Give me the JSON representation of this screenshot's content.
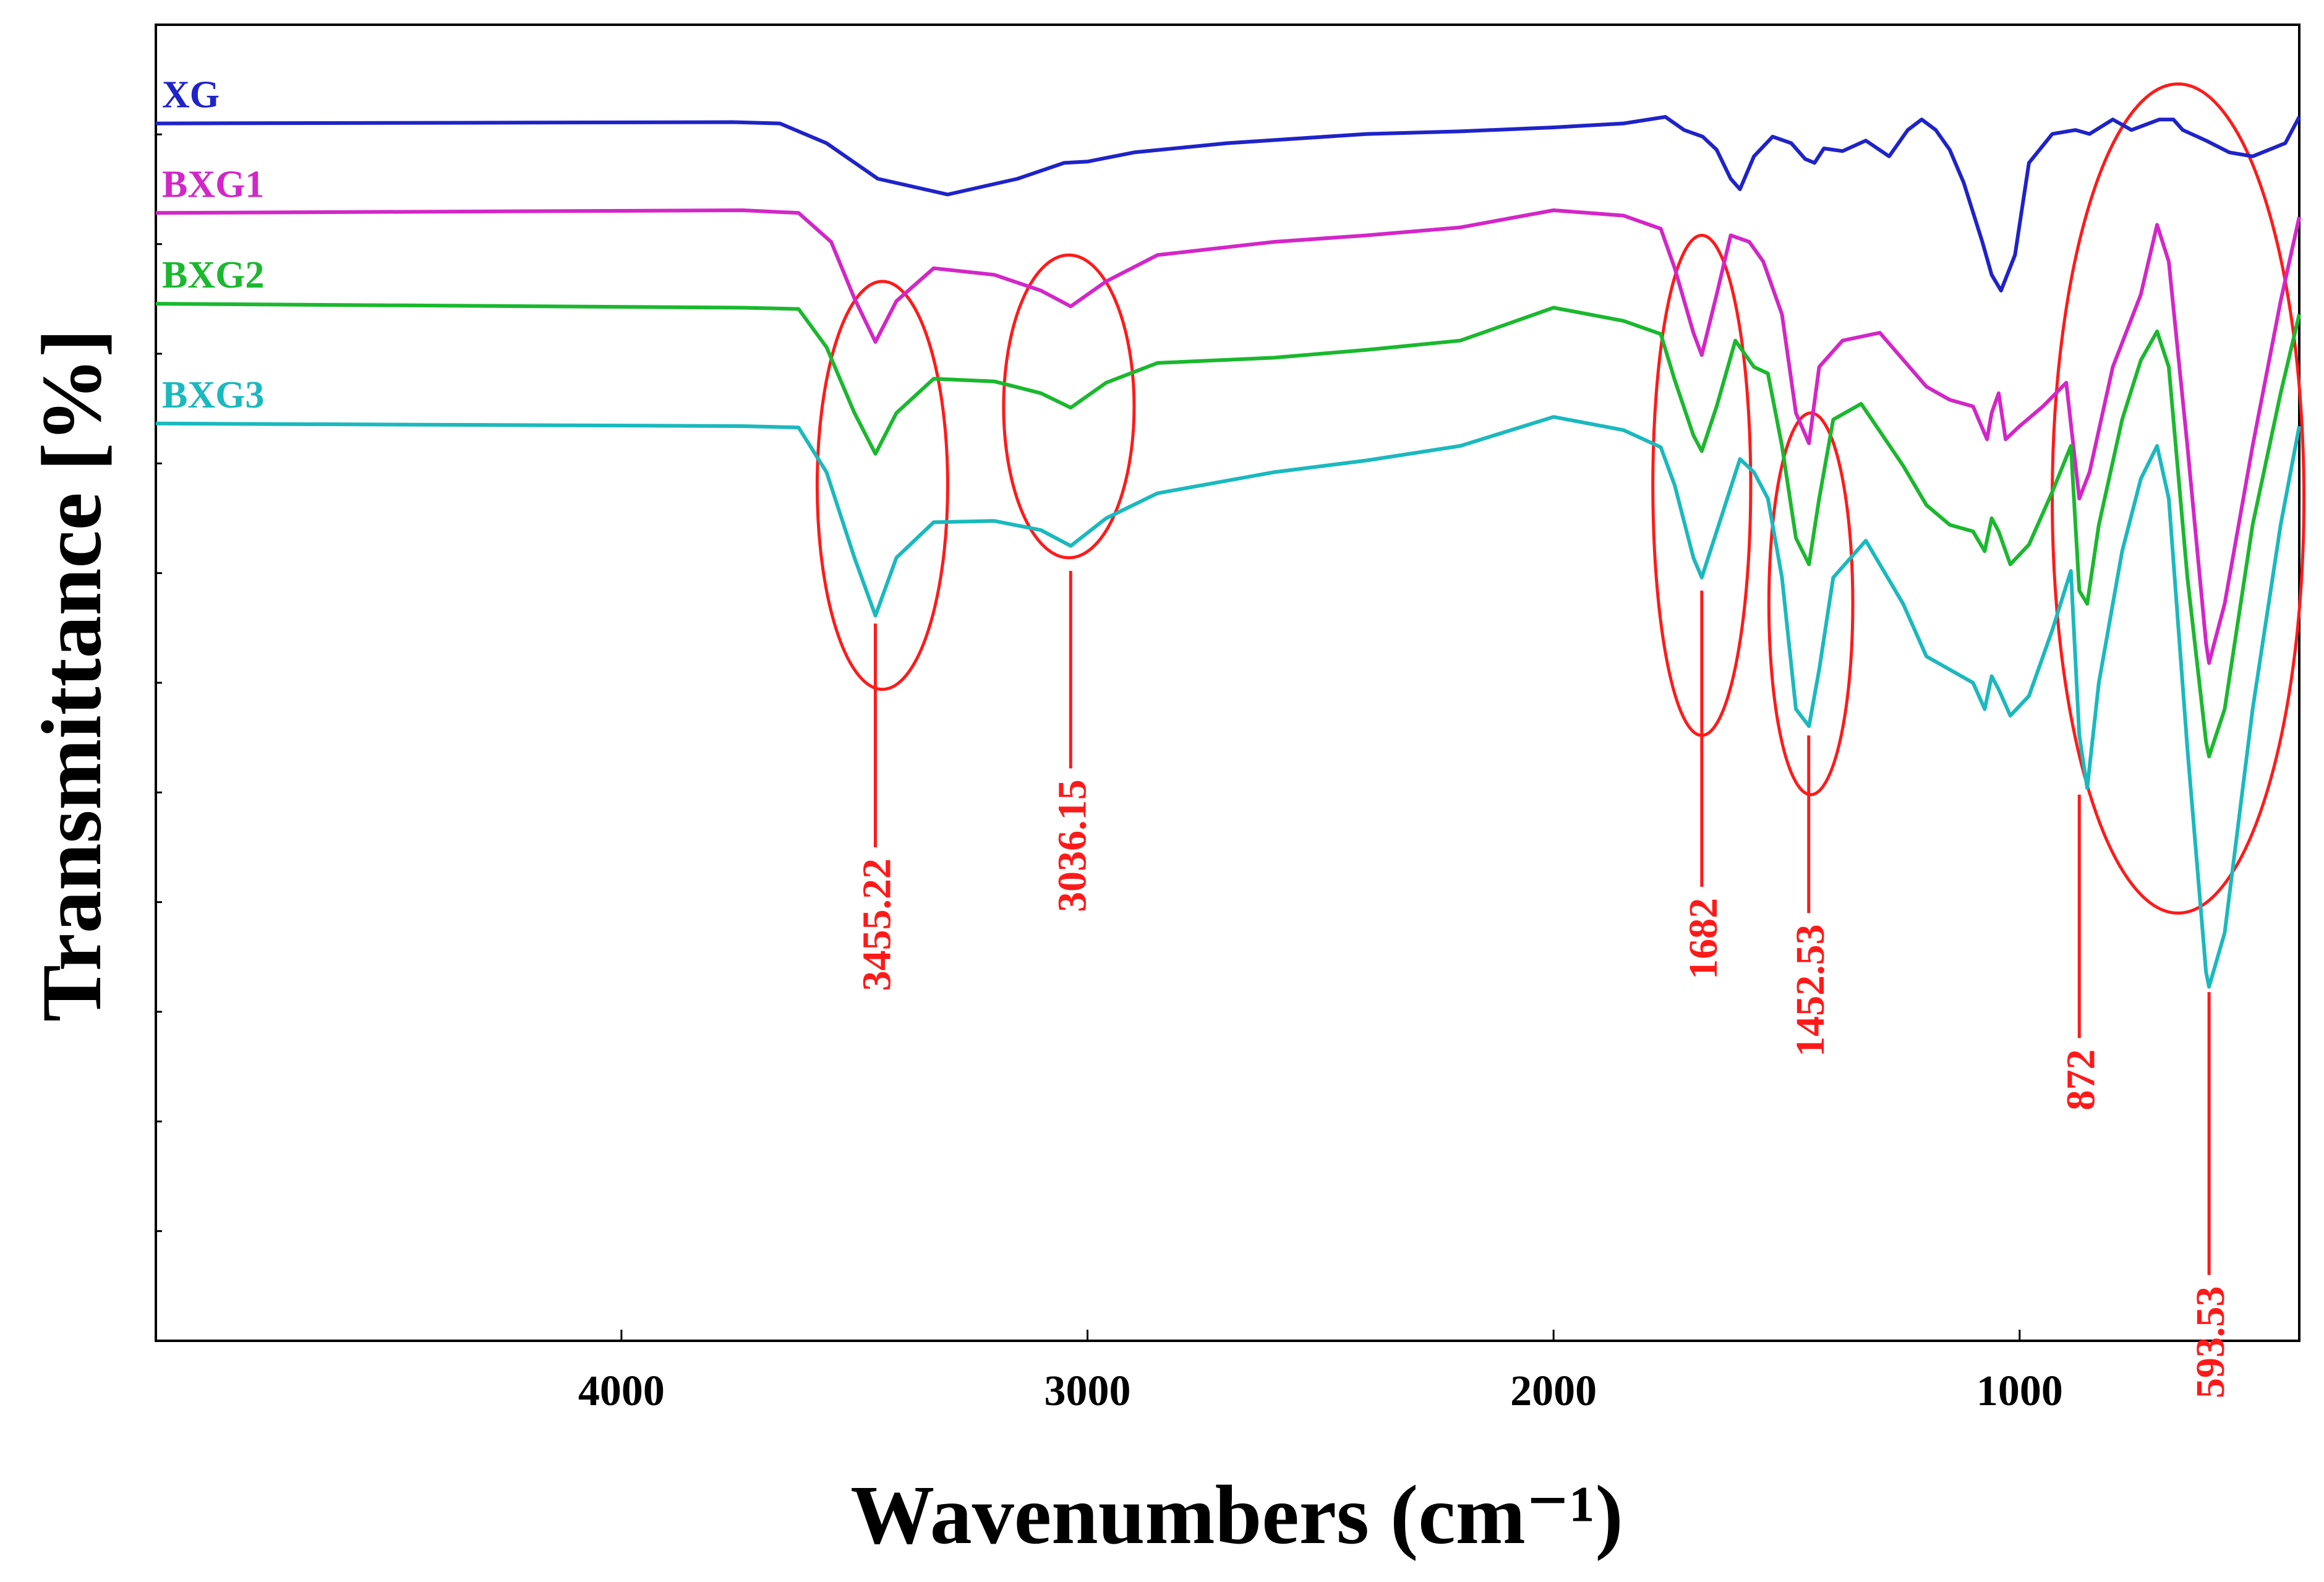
{
  "chart_data": {
    "type": "line",
    "xlabel": "Wavenumbers (cm⁻¹)",
    "ylabel": "Transmittance [%]",
    "xlim": [
      4999,
      400
    ],
    "x_reversed": true,
    "ylim": [
      0,
      100
    ],
    "y_tick_labels_shown": false,
    "grid": false,
    "x_ticks": [
      {
        "value": 4000,
        "label": "4000"
      },
      {
        "value": 3000,
        "label": "3000"
      },
      {
        "value": 2000,
        "label": "2000"
      },
      {
        "value": 1000,
        "label": "1000"
      }
    ],
    "series": [
      {
        "name": "XG",
        "color": "#1f23c8",
        "points": [
          [
            4999,
            92.5
          ],
          [
            3760,
            92.6
          ],
          [
            3660,
            92.5
          ],
          [
            3560,
            91.0
          ],
          [
            3450,
            88.3
          ],
          [
            3300,
            87.1
          ],
          [
            3150,
            88.3
          ],
          [
            3050,
            89.5
          ],
          [
            3000,
            89.6
          ],
          [
            2900,
            90.3
          ],
          [
            2700,
            91.0
          ],
          [
            2400,
            91.7
          ],
          [
            2200,
            91.9
          ],
          [
            2000,
            92.2
          ],
          [
            1850,
            92.5
          ],
          [
            1760,
            93.0
          ],
          [
            1720,
            92.0
          ],
          [
            1680,
            91.5
          ],
          [
            1650,
            90.5
          ],
          [
            1620,
            88.3
          ],
          [
            1600,
            87.5
          ],
          [
            1570,
            90.0
          ],
          [
            1530,
            91.5
          ],
          [
            1490,
            91.0
          ],
          [
            1460,
            89.8
          ],
          [
            1440,
            89.5
          ],
          [
            1420,
            90.6
          ],
          [
            1380,
            90.4
          ],
          [
            1330,
            91.2
          ],
          [
            1280,
            90.0
          ],
          [
            1240,
            92.0
          ],
          [
            1210,
            92.8
          ],
          [
            1180,
            92.0
          ],
          [
            1150,
            90.5
          ],
          [
            1120,
            88.0
          ],
          [
            1080,
            83.5
          ],
          [
            1060,
            81.0
          ],
          [
            1040,
            79.8
          ],
          [
            1010,
            82.5
          ],
          [
            980,
            89.5
          ],
          [
            930,
            91.7
          ],
          [
            880,
            92.0
          ],
          [
            850,
            91.7
          ],
          [
            800,
            92.8
          ],
          [
            760,
            92.0
          ],
          [
            700,
            92.8
          ],
          [
            670,
            92.8
          ],
          [
            650,
            92.0
          ],
          [
            600,
            91.2
          ],
          [
            550,
            90.3
          ],
          [
            500,
            90.0
          ],
          [
            430,
            91.0
          ],
          [
            400,
            93.0
          ]
        ]
      },
      {
        "name": "BXG1",
        "color": "#d326c8",
        "points": [
          [
            4999,
            85.7
          ],
          [
            3740,
            85.9
          ],
          [
            3620,
            85.7
          ],
          [
            3550,
            83.5
          ],
          [
            3500,
            79.2
          ],
          [
            3455,
            75.9
          ],
          [
            3410,
            79.0
          ],
          [
            3330,
            81.5
          ],
          [
            3200,
            81.0
          ],
          [
            3100,
            79.8
          ],
          [
            3036,
            78.6
          ],
          [
            2960,
            80.5
          ],
          [
            2850,
            82.5
          ],
          [
            2600,
            83.5
          ],
          [
            2400,
            84.0
          ],
          [
            2200,
            84.6
          ],
          [
            2000,
            85.9
          ],
          [
            1850,
            85.5
          ],
          [
            1770,
            84.5
          ],
          [
            1740,
            81.5
          ],
          [
            1700,
            76.6
          ],
          [
            1682,
            74.9
          ],
          [
            1650,
            79.5
          ],
          [
            1620,
            84.0
          ],
          [
            1580,
            83.5
          ],
          [
            1550,
            82.0
          ],
          [
            1510,
            78.0
          ],
          [
            1480,
            70.5
          ],
          [
            1452,
            68.2
          ],
          [
            1430,
            74.0
          ],
          [
            1380,
            76.0
          ],
          [
            1300,
            76.6
          ],
          [
            1200,
            72.5
          ],
          [
            1150,
            71.5
          ],
          [
            1100,
            71.0
          ],
          [
            1070,
            68.5
          ],
          [
            1060,
            70.5
          ],
          [
            1045,
            72.0
          ],
          [
            1030,
            68.5
          ],
          [
            1000,
            69.5
          ],
          [
            950,
            71.0
          ],
          [
            900,
            72.8
          ],
          [
            872,
            64.0
          ],
          [
            850,
            66.0
          ],
          [
            800,
            74.0
          ],
          [
            740,
            79.5
          ],
          [
            705,
            84.8
          ],
          [
            680,
            82.0
          ],
          [
            640,
            68.0
          ],
          [
            600,
            53.0
          ],
          [
            593.53,
            51.5
          ],
          [
            560,
            56.0
          ],
          [
            500,
            68.0
          ],
          [
            440,
            79.0
          ],
          [
            400,
            85.4
          ]
        ]
      },
      {
        "name": "BXG2",
        "color": "#1ab82e",
        "points": [
          [
            4999,
            78.8
          ],
          [
            3740,
            78.5
          ],
          [
            3620,
            78.4
          ],
          [
            3560,
            75.5
          ],
          [
            3500,
            70.5
          ],
          [
            3455,
            67.4
          ],
          [
            3410,
            70.5
          ],
          [
            3330,
            73.1
          ],
          [
            3200,
            72.9
          ],
          [
            3100,
            72.0
          ],
          [
            3036,
            70.9
          ],
          [
            2960,
            72.8
          ],
          [
            2850,
            74.3
          ],
          [
            2600,
            74.7
          ],
          [
            2400,
            75.3
          ],
          [
            2200,
            76.0
          ],
          [
            2000,
            78.5
          ],
          [
            1850,
            77.5
          ],
          [
            1770,
            76.5
          ],
          [
            1740,
            73.0
          ],
          [
            1700,
            68.8
          ],
          [
            1682,
            67.6
          ],
          [
            1650,
            71.0
          ],
          [
            1610,
            76.0
          ],
          [
            1570,
            74.0
          ],
          [
            1540,
            73.5
          ],
          [
            1510,
            68.0
          ],
          [
            1480,
            61.0
          ],
          [
            1452,
            59.0
          ],
          [
            1430,
            64.0
          ],
          [
            1400,
            70.0
          ],
          [
            1340,
            71.2
          ],
          [
            1250,
            66.5
          ],
          [
            1200,
            63.5
          ],
          [
            1150,
            62.0
          ],
          [
            1100,
            61.5
          ],
          [
            1075,
            60.0
          ],
          [
            1060,
            62.5
          ],
          [
            1045,
            61.5
          ],
          [
            1020,
            59.0
          ],
          [
            980,
            60.5
          ],
          [
            930,
            64.5
          ],
          [
            890,
            68.0
          ],
          [
            872,
            57.0
          ],
          [
            855,
            56.0
          ],
          [
            830,
            62.0
          ],
          [
            780,
            70.0
          ],
          [
            740,
            74.5
          ],
          [
            705,
            76.7
          ],
          [
            680,
            74.0
          ],
          [
            640,
            58.0
          ],
          [
            600,
            45.5
          ],
          [
            593.53,
            44.4
          ],
          [
            560,
            48.0
          ],
          [
            500,
            62.0
          ],
          [
            440,
            72.0
          ],
          [
            400,
            78.0
          ]
        ]
      },
      {
        "name": "BXG3",
        "color": "#1ab9be",
        "points": [
          [
            4999,
            69.7
          ],
          [
            3740,
            69.5
          ],
          [
            3620,
            69.4
          ],
          [
            3560,
            66.0
          ],
          [
            3500,
            59.5
          ],
          [
            3455,
            55.1
          ],
          [
            3410,
            59.5
          ],
          [
            3330,
            62.2
          ],
          [
            3200,
            62.3
          ],
          [
            3100,
            61.6
          ],
          [
            3036,
            60.4
          ],
          [
            2960,
            62.5
          ],
          [
            2850,
            64.4
          ],
          [
            2600,
            66.0
          ],
          [
            2400,
            66.9
          ],
          [
            2200,
            68.0
          ],
          [
            2000,
            70.2
          ],
          [
            1850,
            69.2
          ],
          [
            1770,
            67.9
          ],
          [
            1740,
            65.0
          ],
          [
            1700,
            59.5
          ],
          [
            1682,
            58.0
          ],
          [
            1650,
            61.5
          ],
          [
            1600,
            67.0
          ],
          [
            1570,
            66.0
          ],
          [
            1540,
            64.0
          ],
          [
            1510,
            58.0
          ],
          [
            1480,
            48.0
          ],
          [
            1452,
            46.7
          ],
          [
            1430,
            51.0
          ],
          [
            1400,
            58.0
          ],
          [
            1330,
            60.8
          ],
          [
            1250,
            56.0
          ],
          [
            1200,
            52.0
          ],
          [
            1150,
            51.0
          ],
          [
            1100,
            50.0
          ],
          [
            1075,
            48.0
          ],
          [
            1060,
            50.5
          ],
          [
            1045,
            49.5
          ],
          [
            1020,
            47.5
          ],
          [
            980,
            49.0
          ],
          [
            930,
            54.0
          ],
          [
            890,
            58.5
          ],
          [
            872,
            46.0
          ],
          [
            855,
            42.0
          ],
          [
            830,
            50.0
          ],
          [
            780,
            60.0
          ],
          [
            740,
            65.5
          ],
          [
            705,
            68.0
          ],
          [
            680,
            64.0
          ],
          [
            640,
            45.0
          ],
          [
            600,
            28.0
          ],
          [
            593.53,
            26.9
          ],
          [
            560,
            31.0
          ],
          [
            500,
            48.0
          ],
          [
            440,
            62.0
          ],
          [
            400,
            69.5
          ]
        ]
      }
    ],
    "annotations": [
      {
        "label": "3455.22",
        "x": 3455.22,
        "line_from": 54.5,
        "line_to": 37.5,
        "ellipse": {
          "cx": 3440,
          "cy": 65.0,
          "rx": 140,
          "ry": 15.5
        }
      },
      {
        "label": "3036.15",
        "x": 3036.15,
        "line_from": 58.5,
        "line_to": 43.5,
        "ellipse": {
          "cx": 3040,
          "cy": 71.0,
          "rx": 140,
          "ry": 11.5
        }
      },
      {
        "label": "1682",
        "x": 1682,
        "line_from": 57.0,
        "line_to": 34.5,
        "ellipse": {
          "cx": 1682,
          "cy": 65.0,
          "rx": 105,
          "ry": 19.0
        }
      },
      {
        "label": "1452.53",
        "x": 1452.53,
        "line_from": 46.0,
        "line_to": 32.5,
        "ellipse": {
          "cx": 1448,
          "cy": 56.0,
          "rx": 90,
          "ry": 14.5
        }
      },
      {
        "label": "872",
        "x": 872,
        "line_from": 41.5,
        "line_to": 23.0,
        "ellipse": null
      },
      {
        "label": "593.53",
        "x": 593.53,
        "line_from": 26.5,
        "line_to": 5.0,
        "ellipse": {
          "cx": 660,
          "cy": 64.0,
          "rx": 270,
          "ry": 31.5
        }
      }
    ],
    "legend": "top-left, labels stacked next to line starts"
  }
}
